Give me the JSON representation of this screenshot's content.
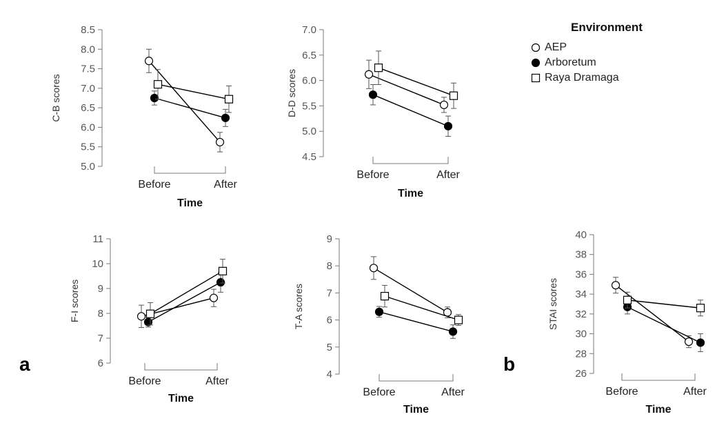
{
  "legend": {
    "title": "Environment",
    "items": [
      {
        "label": "AEP",
        "marker": "open-circle"
      },
      {
        "label": "Arboretum",
        "marker": "filled-circle"
      },
      {
        "label": "Raya Dramaga",
        "marker": "open-square"
      }
    ]
  },
  "panel_letters": {
    "a": "a",
    "b": "b"
  },
  "chart_data": [
    {
      "type": "line",
      "panel": "a",
      "ylabel": "C-B scores",
      "xlabel": "Time",
      "categories": [
        "Before",
        "After"
      ],
      "ylim": [
        5.0,
        8.5
      ],
      "yticks": [
        "5.0",
        "5.5",
        "6.0",
        "6.5",
        "7.0",
        "7.5",
        "8.0",
        "8.5"
      ],
      "series": [
        {
          "name": "AEP",
          "values": [
            7.7,
            5.62
          ],
          "errors": [
            0.3,
            0.25
          ]
        },
        {
          "name": "Arboretum",
          "values": [
            6.75,
            6.24
          ],
          "errors": [
            0.18,
            0.22
          ]
        },
        {
          "name": "Raya Dramaga",
          "values": [
            7.1,
            6.72
          ],
          "errors": [
            0.38,
            0.34
          ]
        }
      ]
    },
    {
      "type": "line",
      "panel": "a",
      "ylabel": "D-D scores",
      "xlabel": "Time",
      "categories": [
        "Before",
        "After"
      ],
      "ylim": [
        4.5,
        7.0
      ],
      "yticks": [
        "4.5",
        "5.0",
        "5.5",
        "6.0",
        "6.5",
        "7.0"
      ],
      "series": [
        {
          "name": "AEP",
          "values": [
            6.12,
            5.52
          ],
          "errors": [
            0.28,
            0.15
          ]
        },
        {
          "name": "Arboretum",
          "values": [
            5.72,
            5.1
          ],
          "errors": [
            0.2,
            0.2
          ]
        },
        {
          "name": "Raya Dramaga",
          "values": [
            6.25,
            5.7
          ],
          "errors": [
            0.33,
            0.25
          ]
        }
      ]
    },
    {
      "type": "line",
      "panel": "a",
      "ylabel": "F-I scores",
      "xlabel": "Time",
      "categories": [
        "Before",
        "After"
      ],
      "ylim": [
        6,
        11
      ],
      "yticks": [
        "6",
        "7",
        "8",
        "9",
        "10",
        "11"
      ],
      "series": [
        {
          "name": "AEP",
          "values": [
            7.88,
            8.62
          ],
          "errors": [
            0.45,
            0.35
          ]
        },
        {
          "name": "Arboretum",
          "values": [
            7.65,
            9.25
          ],
          "errors": [
            0.2,
            0.4
          ]
        },
        {
          "name": "Raya Dramaga",
          "values": [
            7.98,
            9.7
          ],
          "errors": [
            0.45,
            0.48
          ]
        }
      ]
    },
    {
      "type": "line",
      "panel": "a",
      "ylabel": "T-A scores",
      "xlabel": "Time",
      "categories": [
        "Before",
        "After"
      ],
      "ylim": [
        4,
        9
      ],
      "yticks": [
        "4",
        "5",
        "6",
        "7",
        "8",
        "9"
      ],
      "series": [
        {
          "name": "AEP",
          "values": [
            7.92,
            6.28
          ],
          "errors": [
            0.42,
            0.2
          ]
        },
        {
          "name": "Arboretum",
          "values": [
            6.3,
            5.57
          ],
          "errors": [
            0.2,
            0.25
          ]
        },
        {
          "name": "Raya Dramaga",
          "values": [
            6.88,
            6.0
          ],
          "errors": [
            0.4,
            0.2
          ]
        }
      ]
    },
    {
      "type": "line",
      "panel": "b",
      "ylabel": "STAI scores",
      "xlabel": "Time",
      "categories": [
        "Before",
        "After"
      ],
      "ylim": [
        26,
        40
      ],
      "yticks": [
        "26",
        "28",
        "30",
        "32",
        "34",
        "36",
        "38",
        "40"
      ],
      "series": [
        {
          "name": "AEP",
          "values": [
            34.9,
            29.2
          ],
          "errors": [
            0.8,
            0.6
          ]
        },
        {
          "name": "Arboretum",
          "values": [
            32.7,
            29.1
          ],
          "errors": [
            0.7,
            0.9
          ]
        },
        {
          "name": "Raya Dramaga",
          "values": [
            33.4,
            32.6
          ],
          "errors": [
            0.8,
            0.8
          ]
        }
      ]
    }
  ]
}
